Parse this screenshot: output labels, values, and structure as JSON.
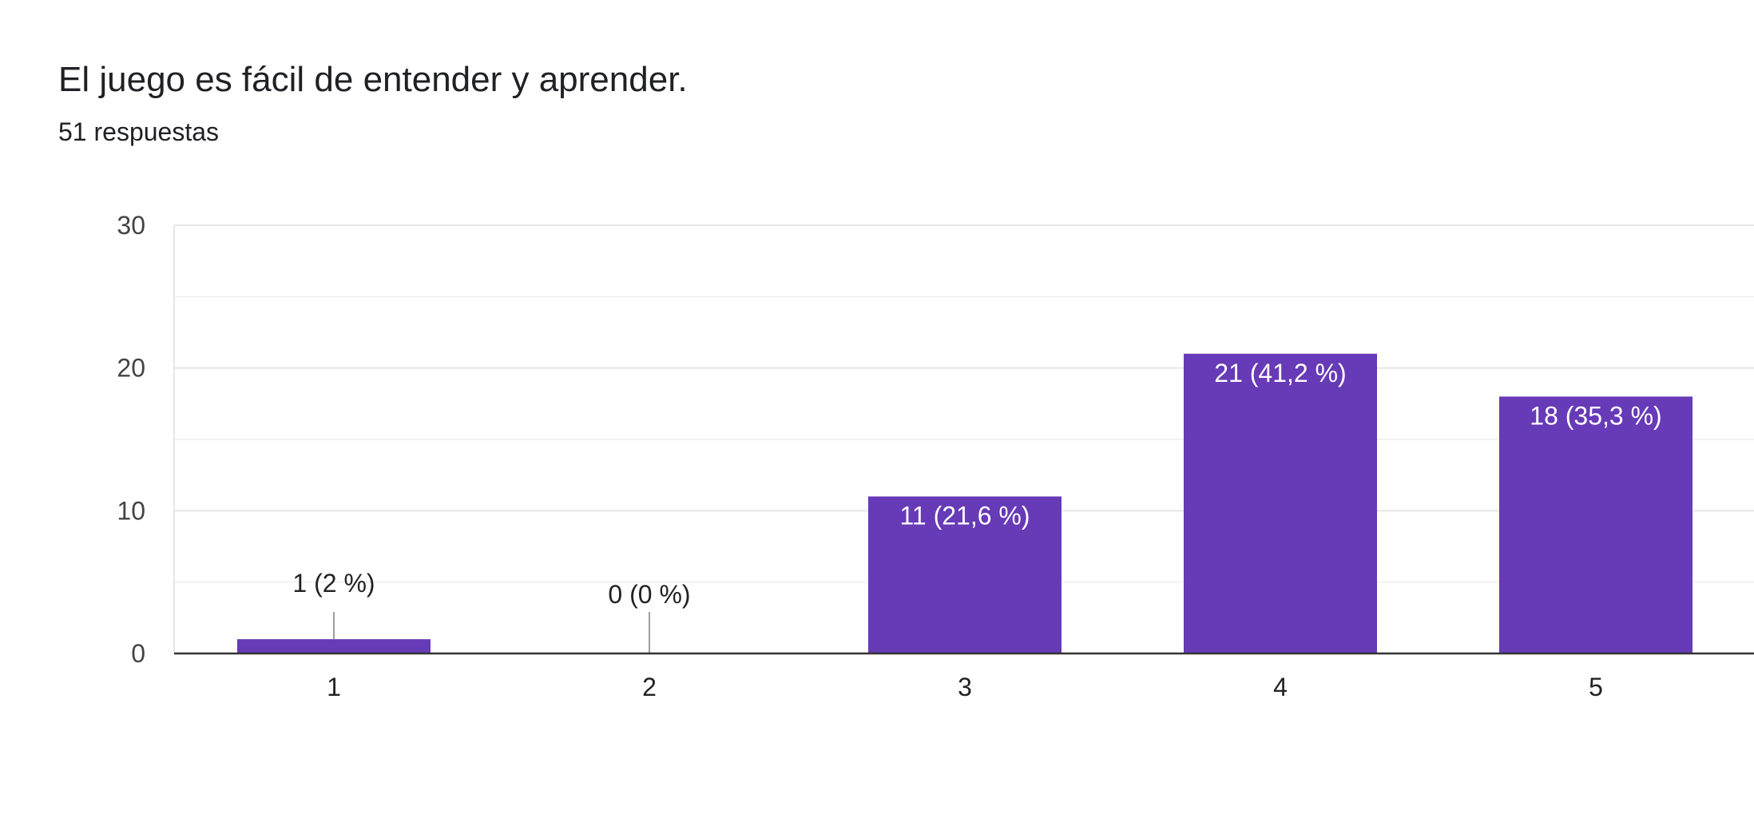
{
  "header": {
    "title": "El juego es fácil de entender y aprender.",
    "subtitle": "51 respuestas"
  },
  "colors": {
    "bar": "#673ab7",
    "axis": "#333333",
    "grid_major": "#e6e6e6",
    "grid_minor": "#f2f2f2",
    "label_inside": "#ffffff",
    "label_outside": "#222222",
    "leader_line": "#9e9e9e"
  },
  "chart_data": {
    "type": "bar",
    "title": "El juego es fácil de entender y aprender.",
    "subtitle": "51 respuestas",
    "categories": [
      "1",
      "2",
      "3",
      "4",
      "5"
    ],
    "values": [
      1,
      0,
      11,
      21,
      18
    ],
    "data_labels": [
      "1 (2 %)",
      "0 (0 %)",
      "11 (21,6 %)",
      "21 (41,2 %)",
      "18 (35,3 %)"
    ],
    "xlabel": "",
    "ylabel": "",
    "ylim": [
      0,
      30
    ],
    "yticks": [
      0,
      10,
      20,
      30
    ],
    "grid": true,
    "legend": "none"
  }
}
